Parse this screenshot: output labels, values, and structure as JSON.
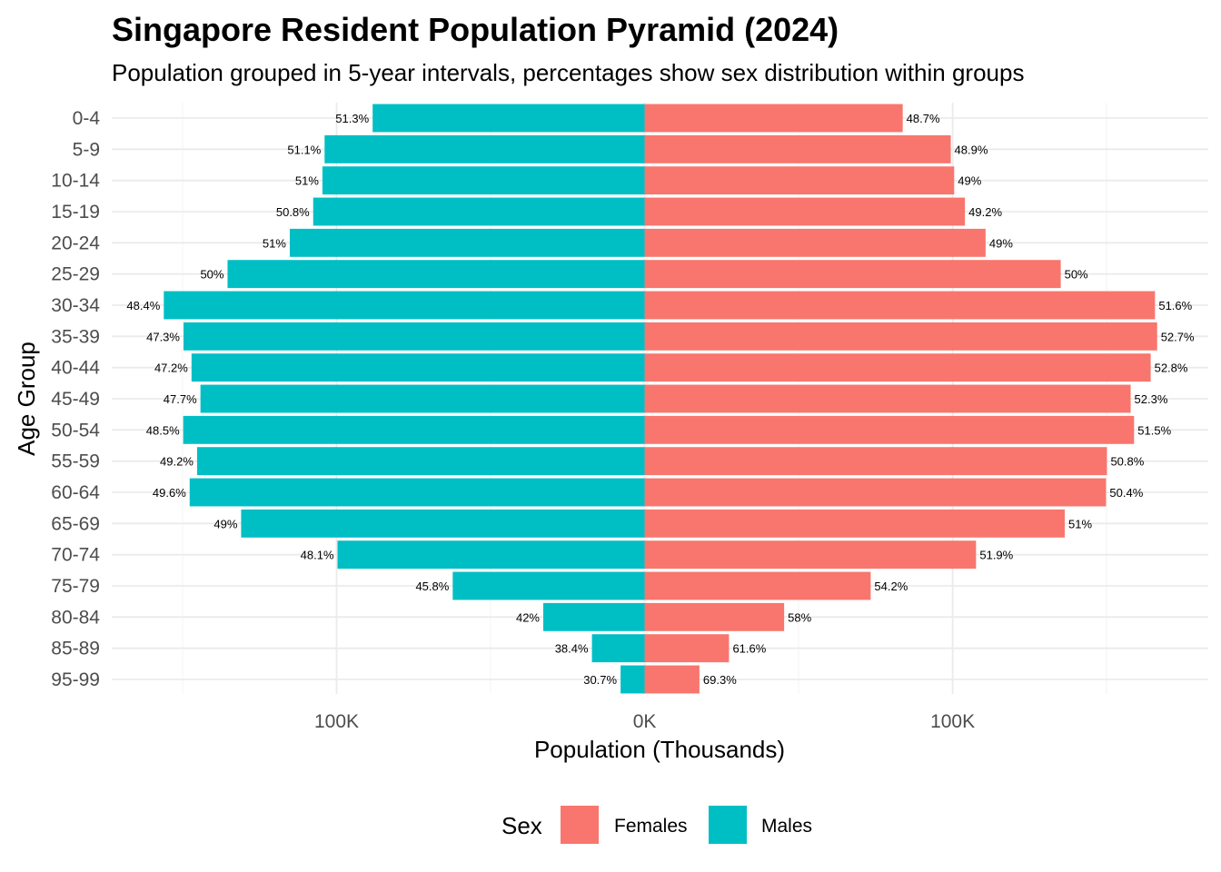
{
  "chart_data": {
    "type": "bar",
    "orientation": "horizontal",
    "title": "Singapore Resident Population Pyramid (2024)",
    "subtitle": "Population grouped in 5-year intervals, percentages show sex distribution within groups",
    "xlabel": "Population (Thousands)",
    "ylabel": "Age Group",
    "xlim": [
      -173,
      183
    ],
    "x_ticks": [
      {
        "value": -100,
        "label": "100K"
      },
      {
        "value": 0,
        "label": "0K"
      },
      {
        "value": 100,
        "label": "100K"
      }
    ],
    "grid": true,
    "legend": {
      "title": "Sex",
      "position": "bottom"
    },
    "categories": [
      "0-4",
      "5-9",
      "10-14",
      "15-19",
      "20-24",
      "25-29",
      "30-34",
      "35-39",
      "40-44",
      "45-49",
      "50-54",
      "55-59",
      "60-64",
      "65-69",
      "70-74",
      "75-79",
      "80-84",
      "85-89",
      "95-99"
    ],
    "series": [
      {
        "name": "Females",
        "color": "#F8766D",
        "side": "right",
        "values": [
          83.8,
          99.4,
          100.5,
          104.0,
          110.7,
          135.1,
          165.7,
          166.4,
          164.3,
          157.8,
          158.9,
          150.1,
          149.8,
          136.4,
          107.6,
          73.4,
          45.3,
          27.4,
          17.8
        ],
        "labels": [
          "48.7%",
          "48.9%",
          "49%",
          "49.2%",
          "49%",
          "50%",
          "51.6%",
          "52.7%",
          "52.8%",
          "52.3%",
          "51.5%",
          "50.8%",
          "50.4%",
          "51%",
          "51.9%",
          "54.2%",
          "58%",
          "61.6%",
          "69.3%"
        ]
      },
      {
        "name": "Males",
        "color": "#00BFC4",
        "side": "left",
        "values": [
          88.3,
          103.9,
          104.6,
          107.6,
          115.2,
          135.4,
          156.1,
          149.7,
          147.1,
          144.2,
          149.8,
          145.3,
          147.7,
          131.0,
          99.7,
          62.3,
          32.9,
          17.1,
          7.8
        ],
        "labels": [
          "51.3%",
          "51.1%",
          "51%",
          "50.8%",
          "51%",
          "50%",
          "48.4%",
          "47.3%",
          "47.2%",
          "47.7%",
          "48.5%",
          "49.2%",
          "49.6%",
          "49%",
          "48.1%",
          "45.8%",
          "42%",
          "38.4%",
          "30.7%"
        ]
      }
    ]
  }
}
